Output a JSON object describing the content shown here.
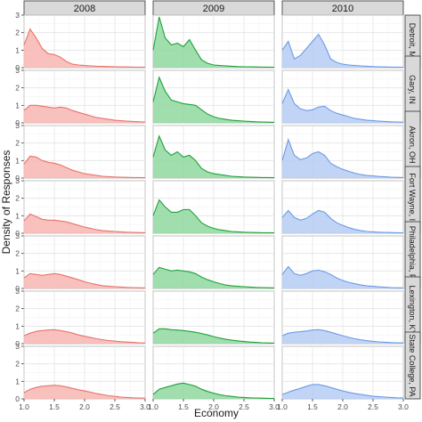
{
  "chart_data": {
    "type": "area",
    "title": "",
    "xlabel": "Economy",
    "ylabel": "Density of Responses",
    "xlim": [
      1.0,
      3.0
    ],
    "ylim": [
      0,
      3
    ],
    "x_ticks": [
      "1.0",
      "1.5",
      "2.0",
      "2.5",
      "3.0"
    ],
    "y_ticks": [
      "0",
      "1",
      "2",
      "3"
    ],
    "grid": true,
    "legend": "none",
    "columns": [
      "2008",
      "2009",
      "2010"
    ],
    "rows": [
      "Detroit, MI",
      "Gary, IN",
      "Akron, OH",
      "Fort Wayne, IN",
      "Philadelphia, PA",
      "Lexington, KY",
      "State College, PA"
    ],
    "colors": {
      "2008": {
        "fill": "#f8b6b1",
        "line": "#e8736b"
      },
      "2009": {
        "fill": "#8fd8a0",
        "line": "#1fa23a"
      },
      "2010": {
        "fill": "#b6cdf4",
        "line": "#6b9be6"
      }
    },
    "x": [
      1.0,
      1.1,
      1.2,
      1.3,
      1.4,
      1.5,
      1.6,
      1.7,
      1.8,
      1.9,
      2.0,
      2.1,
      2.2,
      2.3,
      2.4,
      2.5,
      2.6,
      2.7,
      2.8,
      2.9,
      3.0
    ],
    "panels": [
      [
        [
          1.3,
          2.2,
          1.7,
          1.1,
          0.8,
          0.75,
          0.6,
          0.35,
          0.2,
          0.15,
          0.12,
          0.1,
          0.08,
          0.07,
          0.06,
          0.05,
          0.04,
          0.04,
          0.03,
          0.03,
          0.02
        ],
        [
          1.0,
          2.9,
          1.7,
          1.3,
          1.4,
          1.2,
          1.6,
          1.0,
          0.45,
          0.25,
          0.15,
          0.12,
          0.1,
          0.08,
          0.06,
          0.05,
          0.05,
          0.04,
          0.03,
          0.03,
          0.02
        ],
        [
          1.0,
          1.5,
          0.5,
          0.7,
          1.1,
          1.5,
          1.9,
          1.3,
          0.5,
          0.3,
          0.2,
          0.15,
          0.12,
          0.1,
          0.08,
          0.06,
          0.05,
          0.04,
          0.03,
          0.03,
          0.02
        ]
      ],
      [
        [
          0.7,
          1.0,
          1.0,
          0.95,
          0.9,
          0.85,
          0.9,
          0.85,
          0.7,
          0.6,
          0.5,
          0.4,
          0.3,
          0.25,
          0.2,
          0.15,
          0.12,
          0.1,
          0.08,
          0.06,
          0.05
        ],
        [
          1.2,
          2.6,
          1.8,
          1.3,
          1.2,
          1.1,
          1.05,
          1.0,
          0.75,
          0.5,
          0.35,
          0.25,
          0.2,
          0.15,
          0.12,
          0.1,
          0.08,
          0.06,
          0.05,
          0.04,
          0.03
        ],
        [
          1.1,
          1.9,
          1.1,
          0.8,
          0.7,
          0.75,
          0.9,
          0.95,
          0.7,
          0.55,
          0.45,
          0.35,
          0.25,
          0.2,
          0.15,
          0.12,
          0.1,
          0.08,
          0.06,
          0.05,
          0.04
        ]
      ],
      [
        [
          0.8,
          1.25,
          1.2,
          1.0,
          0.9,
          0.85,
          0.75,
          0.6,
          0.45,
          0.35,
          0.25,
          0.2,
          0.15,
          0.1,
          0.08,
          0.06,
          0.05,
          0.04,
          0.03,
          0.03,
          0.02
        ],
        [
          1.2,
          2.4,
          1.6,
          1.3,
          1.5,
          1.2,
          1.3,
          1.0,
          0.55,
          0.35,
          0.25,
          0.2,
          0.15,
          0.1,
          0.08,
          0.06,
          0.05,
          0.04,
          0.03,
          0.03,
          0.02
        ],
        [
          1.0,
          2.2,
          1.3,
          1.05,
          1.15,
          1.4,
          1.5,
          1.3,
          0.85,
          0.65,
          0.5,
          0.38,
          0.28,
          0.2,
          0.15,
          0.12,
          0.09,
          0.07,
          0.05,
          0.04,
          0.03
        ]
      ],
      [
        [
          0.7,
          1.1,
          0.95,
          0.8,
          0.75,
          0.75,
          0.7,
          0.65,
          0.55,
          0.45,
          0.35,
          0.28,
          0.2,
          0.15,
          0.12,
          0.1,
          0.08,
          0.06,
          0.05,
          0.04,
          0.03
        ],
        [
          1.0,
          1.9,
          1.5,
          1.2,
          1.2,
          1.35,
          1.35,
          1.0,
          0.6,
          0.4,
          0.28,
          0.2,
          0.15,
          0.1,
          0.08,
          0.06,
          0.05,
          0.04,
          0.03,
          0.03,
          0.02
        ],
        [
          0.9,
          1.3,
          0.9,
          0.75,
          0.85,
          1.1,
          1.3,
          1.2,
          0.85,
          0.6,
          0.45,
          0.32,
          0.22,
          0.15,
          0.1,
          0.08,
          0.06,
          0.05,
          0.04,
          0.03,
          0.02
        ]
      ],
      [
        [
          0.6,
          0.85,
          0.8,
          0.75,
          0.8,
          0.85,
          0.8,
          0.7,
          0.6,
          0.5,
          0.38,
          0.3,
          0.22,
          0.16,
          0.12,
          0.1,
          0.08,
          0.06,
          0.05,
          0.04,
          0.03
        ],
        [
          0.8,
          1.2,
          1.1,
          1.0,
          1.05,
          1.0,
          0.95,
          0.85,
          0.65,
          0.5,
          0.38,
          0.28,
          0.2,
          0.15,
          0.12,
          0.1,
          0.08,
          0.06,
          0.05,
          0.04,
          0.03
        ],
        [
          0.8,
          1.25,
          0.85,
          0.75,
          0.85,
          1.0,
          1.05,
          0.95,
          0.8,
          0.6,
          0.45,
          0.35,
          0.27,
          0.2,
          0.15,
          0.12,
          0.09,
          0.07,
          0.05,
          0.04,
          0.03
        ]
      ],
      [
        [
          0.45,
          0.6,
          0.7,
          0.75,
          0.78,
          0.8,
          0.75,
          0.68,
          0.6,
          0.5,
          0.42,
          0.35,
          0.28,
          0.22,
          0.18,
          0.14,
          0.11,
          0.09,
          0.07,
          0.05,
          0.04
        ],
        [
          0.6,
          0.85,
          0.85,
          0.8,
          0.78,
          0.75,
          0.7,
          0.65,
          0.58,
          0.5,
          0.4,
          0.32,
          0.25,
          0.2,
          0.16,
          0.12,
          0.09,
          0.07,
          0.05,
          0.04,
          0.03
        ],
        [
          0.45,
          0.6,
          0.65,
          0.68,
          0.72,
          0.78,
          0.8,
          0.75,
          0.65,
          0.55,
          0.45,
          0.36,
          0.28,
          0.22,
          0.17,
          0.13,
          0.1,
          0.08,
          0.06,
          0.05,
          0.04
        ]
      ],
      [
        [
          0.35,
          0.55,
          0.65,
          0.72,
          0.75,
          0.78,
          0.75,
          0.68,
          0.6,
          0.52,
          0.45,
          0.38,
          0.3,
          0.24,
          0.18,
          0.14,
          0.1,
          0.08,
          0.06,
          0.05,
          0.04
        ],
        [
          0.25,
          0.55,
          0.65,
          0.75,
          0.85,
          0.9,
          0.82,
          0.72,
          0.55,
          0.42,
          0.32,
          0.24,
          0.18,
          0.14,
          0.1,
          0.08,
          0.06,
          0.05,
          0.04,
          0.03,
          0.02
        ],
        [
          0.25,
          0.38,
          0.5,
          0.6,
          0.72,
          0.82,
          0.82,
          0.75,
          0.65,
          0.55,
          0.45,
          0.37,
          0.3,
          0.25,
          0.2,
          0.15,
          0.12,
          0.1,
          0.08,
          0.06,
          0.05
        ]
      ]
    ]
  }
}
